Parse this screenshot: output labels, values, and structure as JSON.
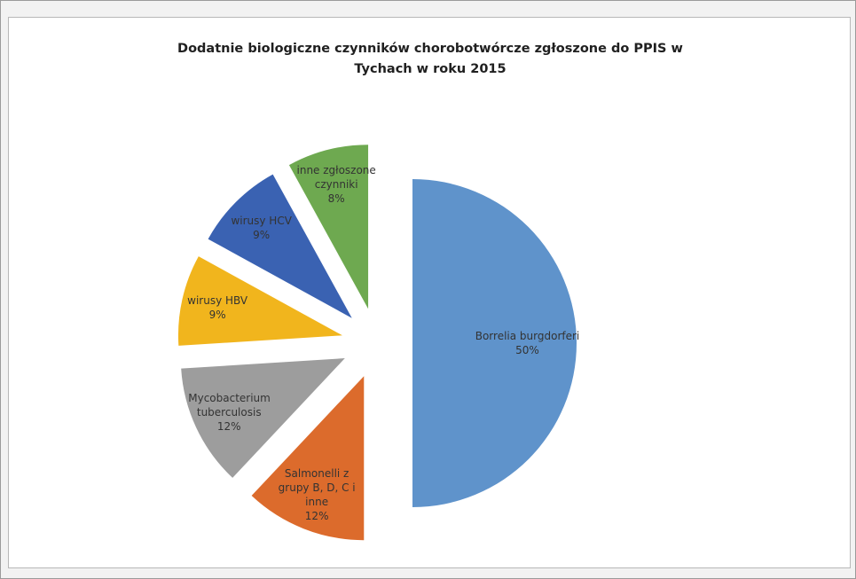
{
  "chart_data": {
    "type": "pie",
    "title": "Dodatnie biologiczne czynników chorobotwórcze zgłoszone do PPIS w Tychach w roku 2015",
    "categories": [
      "Borrelia burgdorferi",
      "Salmonelli z grupy B, D, C i inne",
      "Mycobacterium tuberculosis",
      "wirusy HBV",
      "wirusy HCV",
      "inne zgłoszone czynniki"
    ],
    "values": [
      50,
      12,
      12,
      9,
      9,
      8
    ],
    "value_labels": [
      "50%",
      "12%",
      "12%",
      "9%",
      "9%",
      "8%"
    ],
    "colors": [
      "#5f93cb",
      "#dc6b2c",
      "#9d9d9d",
      "#f1b51d",
      "#3a62b2",
      "#6ea950"
    ],
    "exploded": true
  }
}
